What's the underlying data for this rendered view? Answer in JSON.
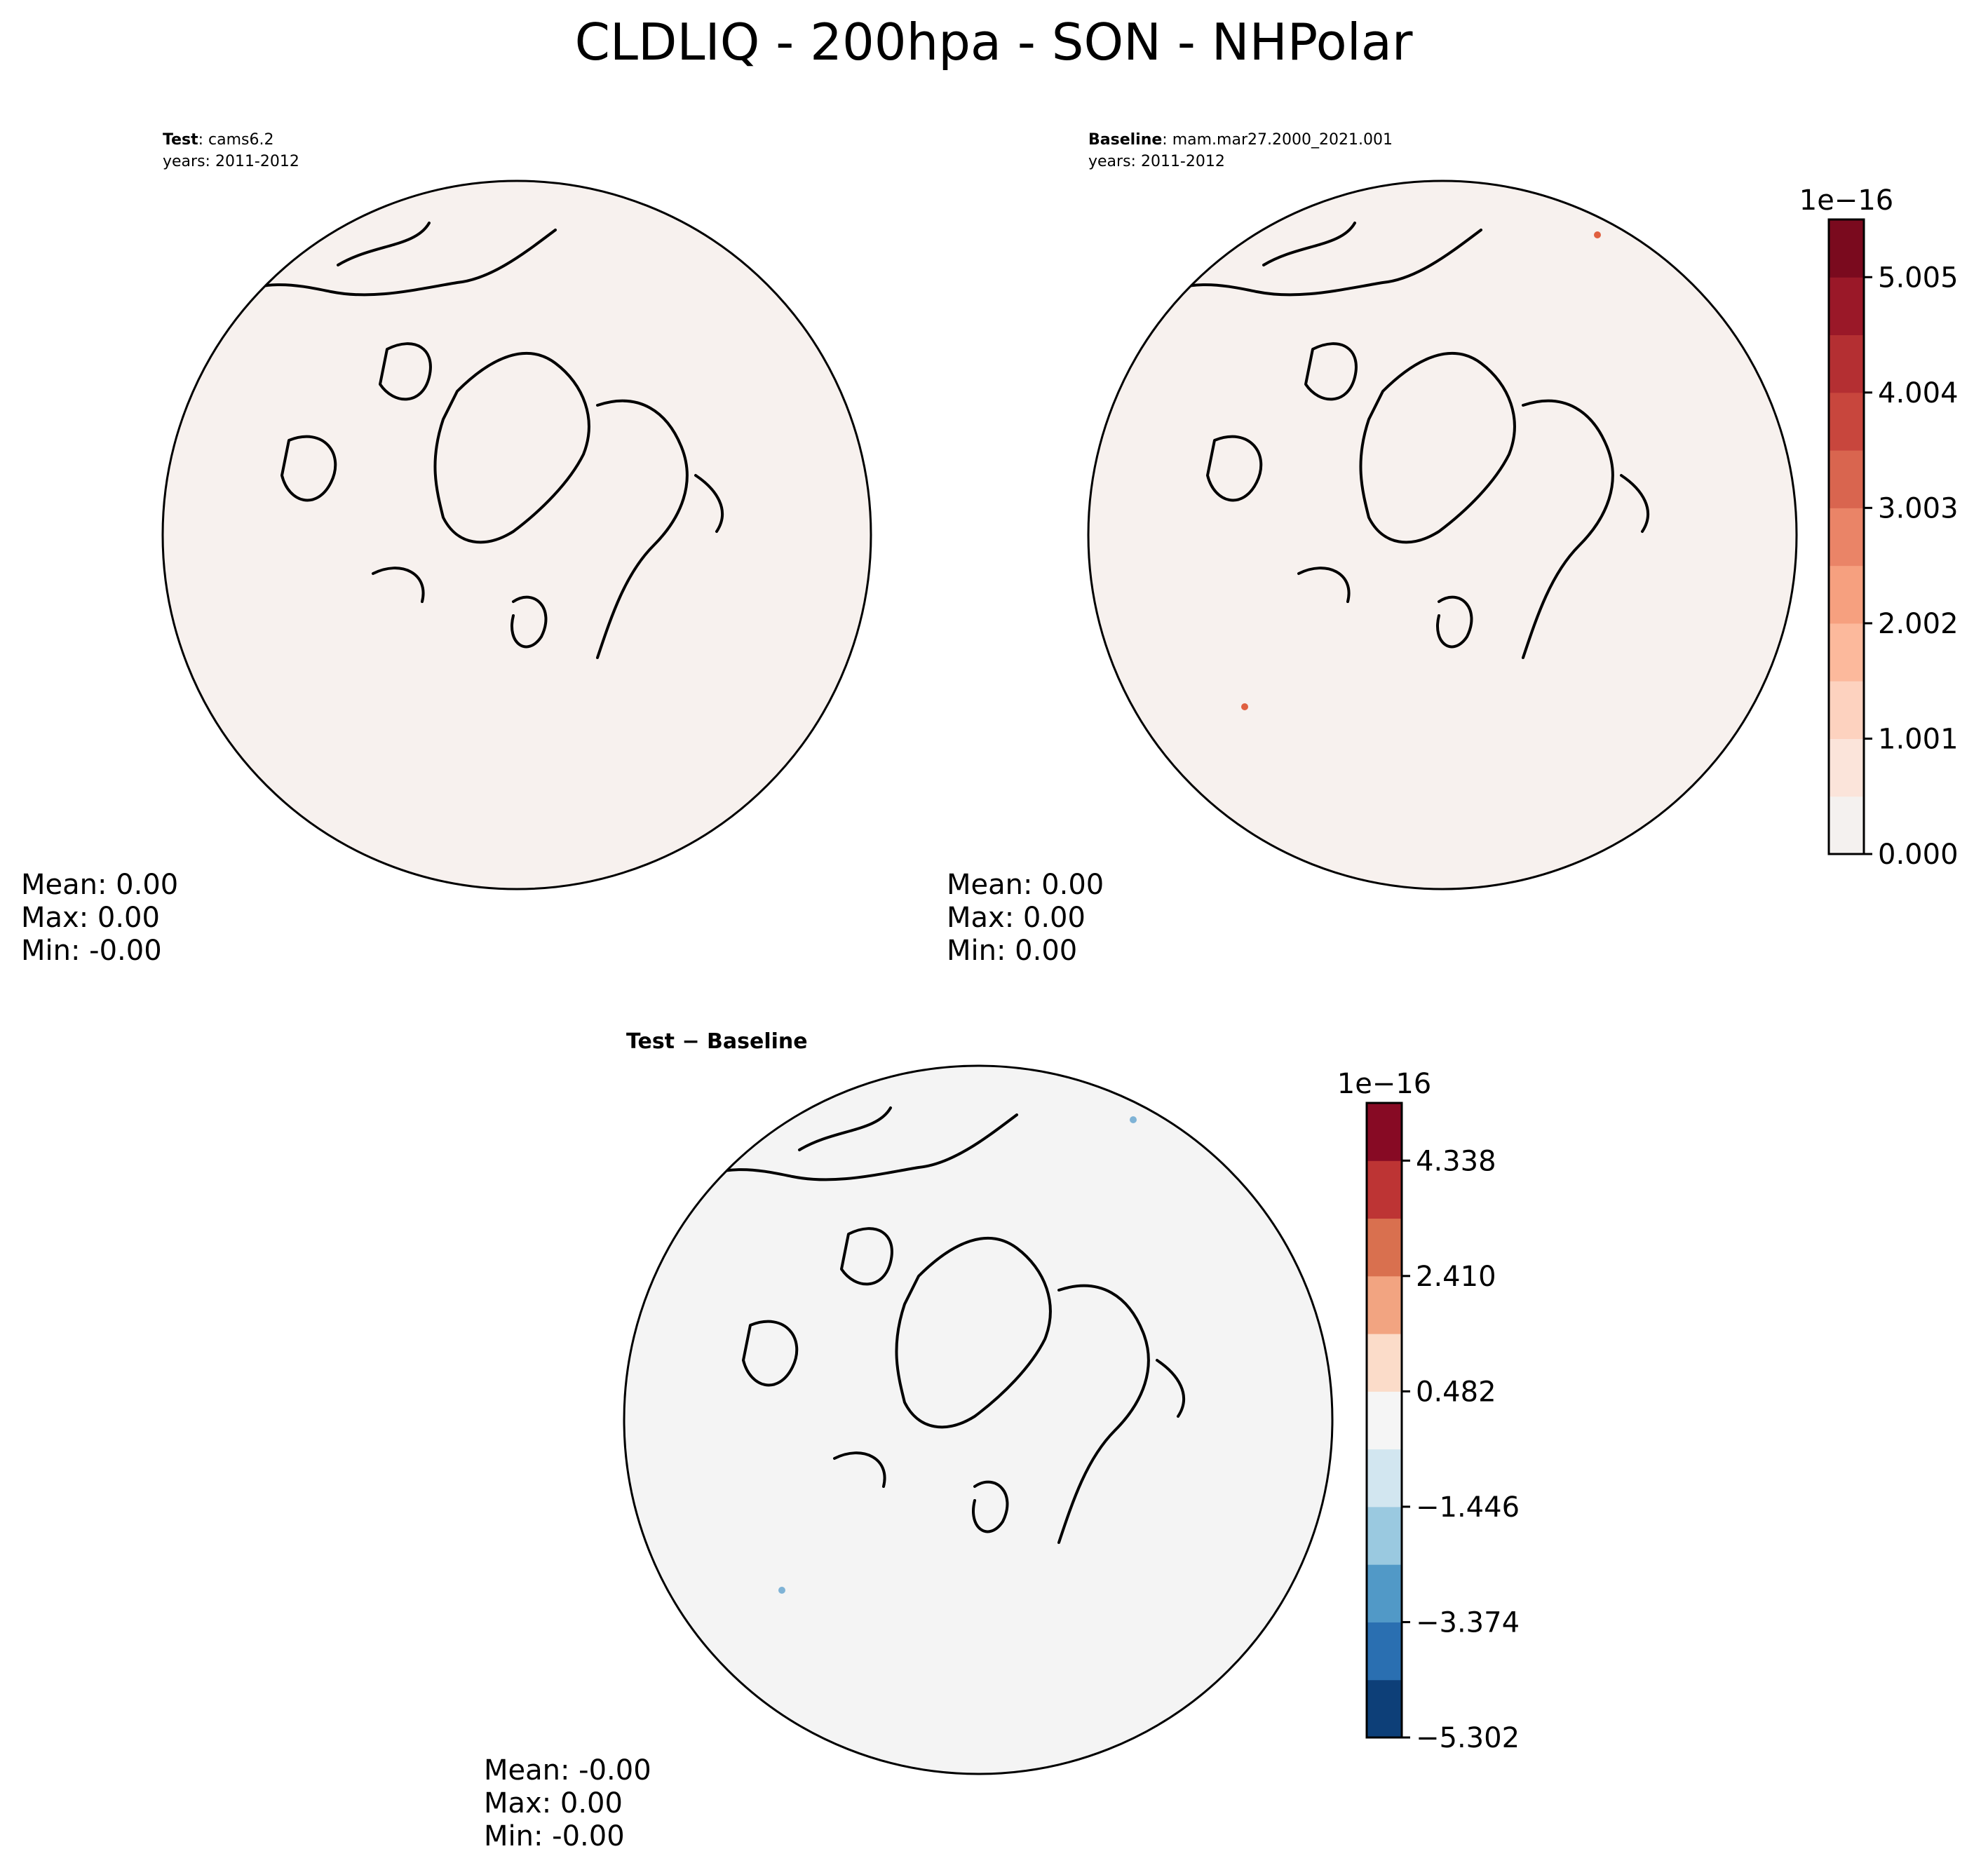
{
  "figure": {
    "title": "CLDLIQ - 200hpa - SON - NHPolar"
  },
  "panels": {
    "test": {
      "label_bold": "Test",
      "label_rest": ": cams6.2",
      "years": "years: 2011-2012",
      "mean": "Mean:  0.00",
      "max": "Max:  0.00",
      "min": "Min: -0.00",
      "fill_color": "#f7f1ee"
    },
    "baseline": {
      "label_bold": "Baseline",
      "label_rest": ": mam.mar27.2000_2021.001",
      "years": "years: 2011-2012",
      "mean": "Mean:  0.00",
      "max": "Max:  0.00",
      "min": "Min:  0.00",
      "fill_color": "#f7f1ee"
    },
    "diff": {
      "title": "Test − Baseline",
      "mean": "Mean: -0.00",
      "max": "Max:  0.00",
      "min": "Min: -0.00",
      "fill_color": "#f4f4f4"
    }
  },
  "chart_data": [
    {
      "type": "heatmap",
      "panel": "Test: cams6.2",
      "region": "NHPolar",
      "field": "CLDLIQ",
      "level": "200hpa",
      "season": "SON",
      "years": "2011-2012",
      "stats": {
        "mean": 0.0,
        "max": 0.0,
        "min": -0.0
      },
      "colormap": "Reds",
      "colorbar": "shared with Baseline"
    },
    {
      "type": "heatmap",
      "panel": "Baseline: mam.mar27.2000_2021.001",
      "region": "NHPolar",
      "field": "CLDLIQ",
      "level": "200hpa",
      "season": "SON",
      "years": "2011-2012",
      "stats": {
        "mean": 0.0,
        "max": 0.0,
        "min": 0.0
      },
      "colormap": "Reds",
      "colorbar": {
        "scale_label": "1e−16",
        "tick_labels": [
          "0.000",
          "1.001",
          "2.002",
          "3.003",
          "4.004",
          "5.005"
        ],
        "ticks": [
          0.0,
          1.001,
          2.002,
          3.003,
          4.004,
          5.005
        ],
        "range": [
          0.0,
          5.5055
        ],
        "levels": 11,
        "colors": [
          "#f4f1ef",
          "#fbe4da",
          "#fdd2bf",
          "#fcb99c",
          "#f6a07f",
          "#ea8467",
          "#d9654f",
          "#c8463d",
          "#b42f32",
          "#9a1828",
          "#7a0a1e"
        ]
      }
    },
    {
      "type": "heatmap",
      "panel": "Test − Baseline",
      "region": "NHPolar",
      "stats": {
        "mean": -0.0,
        "max": 0.0,
        "min": -0.0
      },
      "colormap": "RdBu_r",
      "colorbar": {
        "scale_label": "1e−16",
        "tick_labels": [
          "−5.302",
          "−3.374",
          "−1.446",
          "0.482",
          "2.410",
          "4.338"
        ],
        "ticks": [
          -5.302,
          -3.374,
          -1.446,
          0.482,
          2.41,
          4.338
        ],
        "range": [
          -5.302,
          5.302
        ],
        "levels": 11,
        "colors": [
          "#0d3f78",
          "#2a6fb1",
          "#5199c7",
          "#9ac9e0",
          "#d2e6f0",
          "#f5f5f5",
          "#fbdcc9",
          "#f2a481",
          "#d9704f",
          "#bd3434",
          "#870a24"
        ]
      }
    }
  ]
}
